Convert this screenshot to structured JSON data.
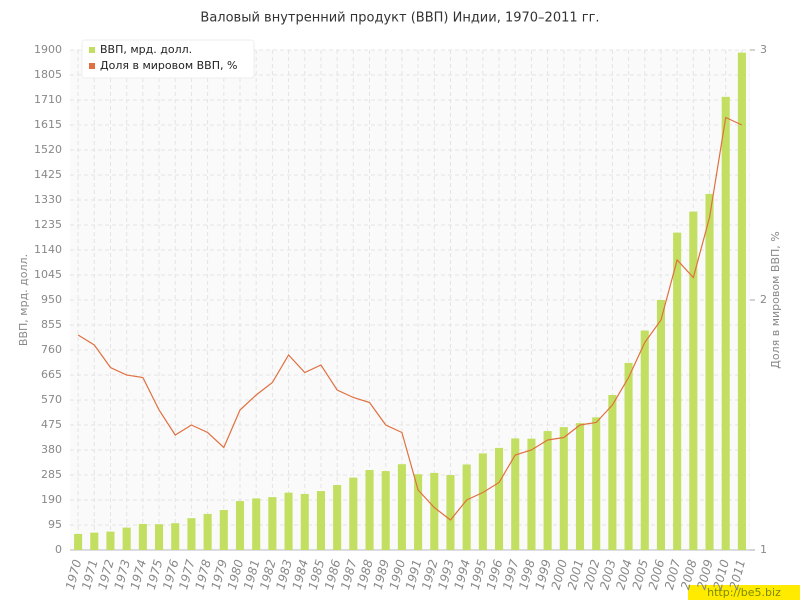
{
  "chart_data": {
    "type": "bar",
    "title": "Валовый внутренний продукт (ВВП) Индии, 1970–2011 гг.",
    "ylabel": "ВВП, мрд. долл.",
    "y2label": "Доля в мировом ВВП, %",
    "source": "http://be5.biz",
    "categories": [
      "1970",
      "1971",
      "1972",
      "1973",
      "1974",
      "1975",
      "1976",
      "1977",
      "1978",
      "1979",
      "1980",
      "1981",
      "1982",
      "1983",
      "1984",
      "1985",
      "1986",
      "1987",
      "1988",
      "1989",
      "1990",
      "1991",
      "1992",
      "1993",
      "1994",
      "1995",
      "1996",
      "1997",
      "1998",
      "1999",
      "2000",
      "2001",
      "2002",
      "2003",
      "2004",
      "2005",
      "2006",
      "2007",
      "2008",
      "2009",
      "2010",
      "2011"
    ],
    "series": [
      {
        "name": "ВВП, мрд. долл.",
        "type": "bar",
        "color": "#c3df62",
        "values": [
          61,
          66,
          70,
          85,
          99,
          98,
          102,
          121,
          137,
          152,
          186,
          196,
          201,
          218,
          213,
          224,
          247,
          275,
          304,
          300,
          326,
          288,
          293,
          285,
          325,
          367,
          388,
          424,
          423,
          452,
          467,
          482,
          504,
          589,
          711,
          834,
          950,
          1206,
          1286,
          1353,
          1722,
          1890
        ]
      },
      {
        "name": "Доля в мировом ВВП, %",
        "type": "line",
        "axis": "y2",
        "color": "#e07040",
        "values": [
          1.86,
          1.82,
          1.73,
          1.7,
          1.69,
          1.56,
          1.46,
          1.5,
          1.47,
          1.41,
          1.56,
          1.62,
          1.67,
          1.78,
          1.71,
          1.74,
          1.64,
          1.61,
          1.59,
          1.5,
          1.47,
          1.24,
          1.17,
          1.12,
          1.2,
          1.23,
          1.27,
          1.38,
          1.4,
          1.44,
          1.45,
          1.5,
          1.51,
          1.58,
          1.69,
          1.83,
          1.92,
          2.16,
          2.09,
          2.33,
          2.73,
          2.7
        ]
      }
    ],
    "ylim": [
      0,
      1900
    ],
    "yticks": [
      0,
      95,
      190,
      285,
      380,
      475,
      570,
      665,
      760,
      855,
      950,
      1045,
      1140,
      1235,
      1330,
      1425,
      1520,
      1615,
      1710,
      1805,
      1900
    ],
    "y2lim": [
      1,
      3
    ],
    "y2ticks": [
      1,
      2,
      3
    ],
    "grid": true,
    "legend": "top-left"
  }
}
